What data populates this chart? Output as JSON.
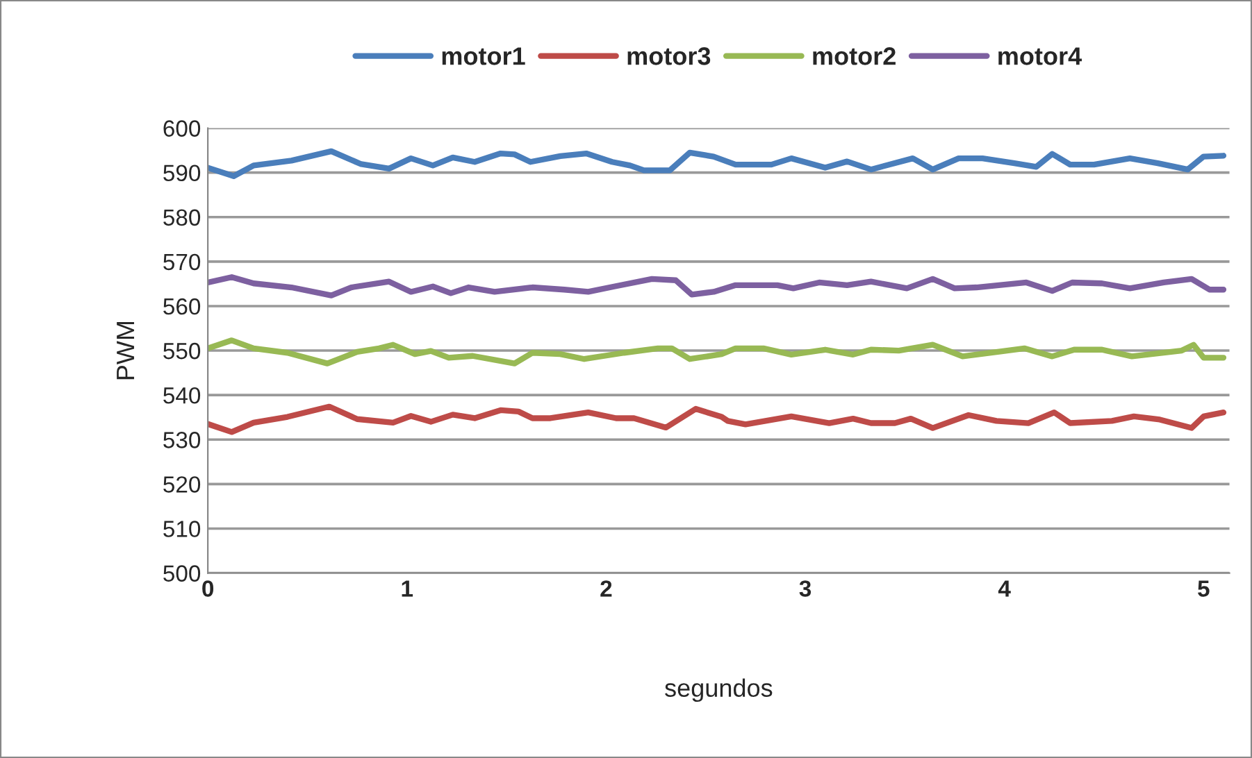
{
  "chart_data": {
    "type": "line",
    "xlabel": "segundos",
    "ylabel": "PWM",
    "xlim": [
      0,
      5.13
    ],
    "xticks": [
      0,
      1,
      2,
      3,
      4,
      5
    ],
    "ylim": [
      500,
      600
    ],
    "yticks": [
      500,
      510,
      520,
      530,
      540,
      550,
      560,
      570,
      580,
      590,
      600
    ],
    "grid": "y",
    "legend": "top",
    "marker": "none",
    "line_style": "solid",
    "series": [
      {
        "name": "motor1",
        "color": "#4a7ebb",
        "x": [
          0,
          0.13,
          0.23,
          0.42,
          0.62,
          0.77,
          0.91,
          1.02,
          1.13,
          1.23,
          1.34,
          1.47,
          1.54,
          1.62,
          1.77,
          1.9,
          2.03,
          2.12,
          2.19,
          2.32,
          2.42,
          2.54,
          2.65,
          2.83,
          2.93,
          3.1,
          3.21,
          3.33,
          3.54,
          3.64,
          3.77,
          3.89,
          4.05,
          4.16,
          4.24,
          4.33,
          4.45,
          4.63,
          4.77,
          4.92,
          5.0,
          5.1
        ],
        "values": [
          591.1,
          589.2,
          591.6,
          592.7,
          594.8,
          591.9,
          590.9,
          593.2,
          591.6,
          593.4,
          592.4,
          594.3,
          594.1,
          592.4,
          593.7,
          594.3,
          592.4,
          591.6,
          590.5,
          590.5,
          594.5,
          593.6,
          591.8,
          591.8,
          593.2,
          591.1,
          592.5,
          590.7,
          593.2,
          590.7,
          593.2,
          593.2,
          592.1,
          591.3,
          594.2,
          591.8,
          591.8,
          593.2,
          592.1,
          590.7,
          593.6,
          593.8
        ]
      },
      {
        "name": "motor3",
        "color": "#be4b48",
        "x": [
          0,
          0.12,
          0.23,
          0.4,
          0.61,
          0.75,
          0.93,
          1.02,
          1.12,
          1.23,
          1.34,
          1.47,
          1.56,
          1.63,
          1.72,
          1.91,
          2.05,
          2.14,
          2.3,
          2.45,
          2.58,
          2.61,
          2.7,
          2.93,
          3.12,
          3.24,
          3.33,
          3.45,
          3.53,
          3.64,
          3.82,
          3.96,
          4.12,
          4.25,
          4.33,
          4.54,
          4.65,
          4.78,
          4.94,
          5.0,
          5.1
        ],
        "values": [
          533.5,
          531.7,
          533.8,
          535.1,
          537.4,
          534.6,
          533.8,
          535.3,
          534.0,
          535.6,
          534.8,
          536.6,
          536.3,
          534.8,
          534.8,
          536.1,
          534.8,
          534.8,
          532.7,
          536.9,
          535.1,
          534.2,
          533.4,
          535.2,
          533.7,
          534.7,
          533.7,
          533.7,
          534.7,
          532.6,
          535.5,
          534.2,
          533.7,
          536.1,
          533.7,
          534.2,
          535.2,
          534.5,
          532.6,
          535.2,
          536.1
        ]
      },
      {
        "name": "motor2",
        "color": "#98b954",
        "x": [
          0,
          0.12,
          0.23,
          0.4,
          0.6,
          0.75,
          0.86,
          0.93,
          1.04,
          1.12,
          1.21,
          1.33,
          1.54,
          1.63,
          1.77,
          1.89,
          2.09,
          2.26,
          2.33,
          2.42,
          2.58,
          2.65,
          2.79,
          2.93,
          3.1,
          3.24,
          3.33,
          3.47,
          3.64,
          3.79,
          3.98,
          4.1,
          4.24,
          4.35,
          4.49,
          4.64,
          4.89,
          4.95,
          5.0,
          5.1
        ],
        "values": [
          550.5,
          552.3,
          550.5,
          549.5,
          547.1,
          549.7,
          550.5,
          551.3,
          549.2,
          549.9,
          548.4,
          548.8,
          547.1,
          549.5,
          549.2,
          548.1,
          549.5,
          550.5,
          550.5,
          548.1,
          549.2,
          550.5,
          550.5,
          549.1,
          550.2,
          549.1,
          550.2,
          550.0,
          551.3,
          548.7,
          549.8,
          550.5,
          548.7,
          550.2,
          550.2,
          548.7,
          550.0,
          551.3,
          548.4,
          548.4
        ]
      },
      {
        "name": "motor4",
        "color": "#7d60a0",
        "x": [
          0,
          0.12,
          0.23,
          0.42,
          0.62,
          0.72,
          0.91,
          1.02,
          1.13,
          1.22,
          1.31,
          1.44,
          1.63,
          1.79,
          1.91,
          2.04,
          2.23,
          2.35,
          2.43,
          2.54,
          2.65,
          2.86,
          2.94,
          3.07,
          3.21,
          3.33,
          3.51,
          3.64,
          3.75,
          3.86,
          4.11,
          4.24,
          4.34,
          4.49,
          4.63,
          4.8,
          4.94,
          5.03,
          5.1
        ],
        "values": [
          565.3,
          566.5,
          565.1,
          564.2,
          562.4,
          564.2,
          565.5,
          563.2,
          564.4,
          562.9,
          564.2,
          563.2,
          564.2,
          563.7,
          563.2,
          564.4,
          566.1,
          565.8,
          562.6,
          563.2,
          564.7,
          564.7,
          564.0,
          565.3,
          564.7,
          565.5,
          564.0,
          566.1,
          564.0,
          564.2,
          565.3,
          563.4,
          565.3,
          565.1,
          564.0,
          565.3,
          566.1,
          563.7,
          563.7
        ]
      }
    ]
  }
}
